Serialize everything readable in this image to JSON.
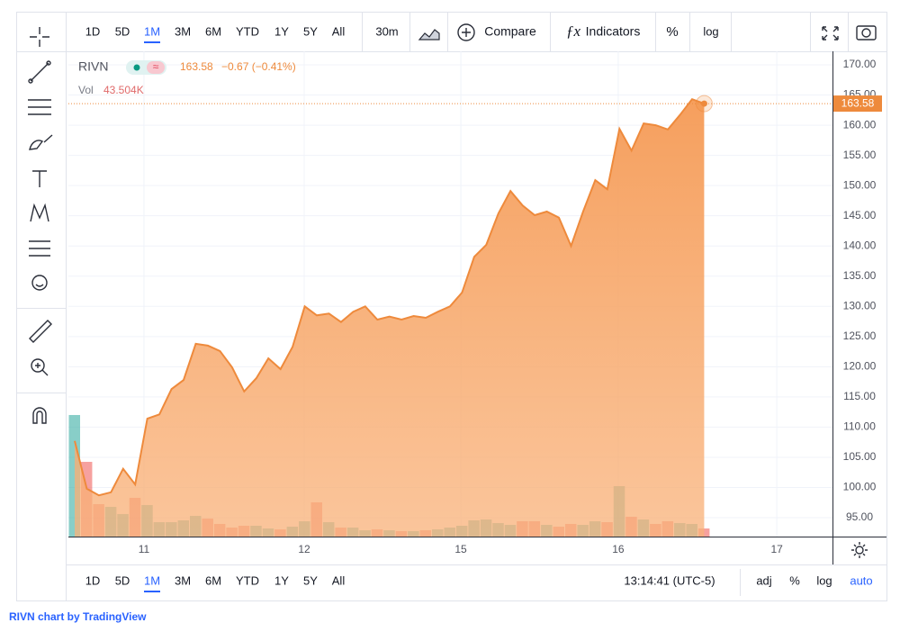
{
  "chart_data": {
    "type": "area",
    "symbol": "RIVN",
    "legend": {
      "change": "−0.67 (−0.41%)",
      "volume_title": "Vol",
      "volume_text": "43.504K"
    },
    "x": [
      0,
      1,
      2,
      3,
      4,
      5,
      6,
      7,
      8,
      9,
      10,
      11,
      12,
      13,
      14,
      15,
      16,
      17,
      18,
      19,
      20,
      21,
      22,
      23,
      24,
      25,
      26,
      27,
      28,
      29,
      30,
      31,
      32,
      33,
      34,
      35,
      36,
      37,
      38,
      39,
      40,
      41,
      42,
      43,
      44,
      45,
      46,
      47,
      48,
      49,
      50,
      51,
      52
    ],
    "series": [
      {
        "name": "RIVN",
        "color": "#ee8a3c",
        "values": [
          107.7,
          99.8,
          98.7,
          99.2,
          103.1,
          100.5,
          111.4,
          112.1,
          116.3,
          117.8,
          123.8,
          123.5,
          122.6,
          119.9,
          115.9,
          118.1,
          121.4,
          119.6,
          123.3,
          130.0,
          128.5,
          128.8,
          127.4,
          129.1,
          130.0,
          127.8,
          128.3,
          127.8,
          128.4,
          128.1,
          129.1,
          130.0,
          132.3,
          138.2,
          140.2,
          145.4,
          149.1,
          146.7,
          145.1,
          145.7,
          144.7,
          140.0,
          145.7,
          150.9,
          149.4,
          159.4,
          155.8,
          160.3,
          160.0,
          159.3,
          161.7,
          164.3,
          163.58
        ]
      },
      {
        "name": "Vol",
        "axis": "y2",
        "up_color": "#26a69a",
        "down_color": "#ef5350",
        "values": [
          652600,
          401200,
          174000,
          159500,
          120900,
          207900,
          169200,
          77300,
          77300,
          87000,
          111200,
          96700,
          67700,
          48300,
          58000,
          58000,
          43500,
          38700,
          53200,
          82200,
          183700,
          77300,
          48300,
          48300,
          33800,
          38700,
          33800,
          29000,
          29000,
          33800,
          38700,
          48300,
          58000,
          87000,
          91800,
          72500,
          62800,
          82200,
          82200,
          62800,
          53200,
          67700,
          62800,
          82200,
          77300,
          270700,
          106300,
          91800,
          67700,
          82200,
          72500,
          67700,
          43504
        ]
      }
    ],
    "xlim": [
      -0.52,
      62.6
    ],
    "xticks": [
      {
        "value": 5.72,
        "label": "11"
      },
      {
        "value": 18.96,
        "label": "12"
      },
      {
        "value": 31.9,
        "label": "15"
      },
      {
        "value": 44.9,
        "label": "16"
      },
      {
        "value": 58.0,
        "label": "17"
      }
    ],
    "ylim": [
      91.87,
      172.24
    ],
    "yticks": [
      {
        "value": 95,
        "label": "95.00"
      },
      {
        "value": 100,
        "label": "100.00"
      },
      {
        "value": 105,
        "label": "105.00"
      },
      {
        "value": 110,
        "label": "110.00"
      },
      {
        "value": 115,
        "label": "115.00"
      },
      {
        "value": 120,
        "label": "120.00"
      },
      {
        "value": 125,
        "label": "125.00"
      },
      {
        "value": 130,
        "label": "130.00"
      },
      {
        "value": 135,
        "label": "135.00"
      },
      {
        "value": 140,
        "label": "140.00"
      },
      {
        "value": 145,
        "label": "145.00"
      },
      {
        "value": 150,
        "label": "150.00"
      },
      {
        "value": 155,
        "label": "155.00"
      },
      {
        "value": 160,
        "label": "160.00"
      },
      {
        "value": 165,
        "label": "165.00"
      },
      {
        "value": 170,
        "label": "170.00"
      }
    ],
    "y2lim": [
      0,
      2605000
    ],
    "grid": true
  },
  "ui": {
    "ranges": [
      "1D",
      "5D",
      "1M",
      "3M",
      "6M",
      "YTD",
      "1Y",
      "5Y",
      "All"
    ],
    "active_range": 2,
    "interval": "30m",
    "compare": "Compare",
    "indicators": "Indicators",
    "percent": "%",
    "log": "log",
    "clock": "13:14:41 (UTC-5)",
    "adj": "adj",
    "auto": "auto",
    "footer": "RIVN chart by TradingView"
  }
}
